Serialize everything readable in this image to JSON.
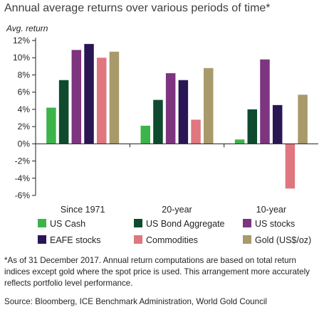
{
  "chart_data": {
    "type": "bar",
    "title": "Annual average returns over various periods of time*",
    "ylabel": "Avg.  return",
    "xlabel": "",
    "categories": [
      "Since 1971",
      "20-year",
      "10-year"
    ],
    "series": [
      {
        "name": "US Cash",
        "values": [
          4.2,
          2.1,
          0.5
        ],
        "color": "#3cb44a"
      },
      {
        "name": "US Bond Aggregate",
        "values": [
          7.4,
          5.1,
          4.0
        ],
        "color": "#0f4a2e"
      },
      {
        "name": "US stocks",
        "values": [
          10.9,
          8.2,
          9.8
        ],
        "color": "#7d3580"
      },
      {
        "name": "EAFE stocks",
        "values": [
          11.6,
          7.4,
          4.5
        ],
        "color": "#2a1654"
      },
      {
        "name": "Commodities",
        "values": [
          10.0,
          2.8,
          -5.2
        ],
        "color": "#e0767e"
      },
      {
        "name": "Gold (US$/oz)",
        "values": [
          10.7,
          8.8,
          5.7
        ],
        "color": "#a89a6a"
      }
    ],
    "ylim": [
      -6,
      12
    ],
    "yticks": [
      12,
      10,
      8,
      6,
      4,
      2,
      0,
      -2,
      -4,
      -6
    ],
    "ytick_labels": [
      "12%",
      "10%",
      "8%",
      "6%",
      "4%",
      "2%",
      "0%",
      "-2%",
      "-4%",
      "-6%"
    ],
    "grid": false,
    "legend_position": "bottom"
  },
  "footnote": "*As of 31 December 2017. Annual return computations are based on total return indices except gold where the spot price is used. This arrangement more accurately reflects portfolio level performance.",
  "source": "Source: Bloomberg, ICE Benchmark Administration, World Gold Council"
}
